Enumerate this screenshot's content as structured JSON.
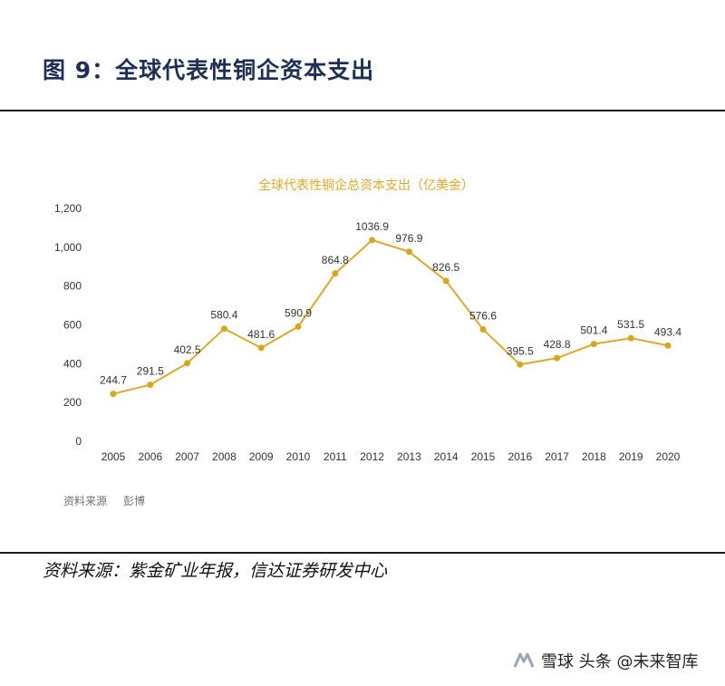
{
  "figure": {
    "title": "图 9：全球代表性铜企资本支出",
    "inner_source_label": "资料来源",
    "inner_source_value": "彭博",
    "source_line": "资料来源：紫金矿业年报，信达证券研发中心",
    "watermark": "雪球 头条 @未来智库"
  },
  "colors": {
    "title_navy": "#1d2f55",
    "line_gold": "#e0a82a",
    "marker_gold": "#d9a520",
    "rule": "#1b1b1b"
  },
  "chart_data": {
    "type": "line",
    "title": "全球代表性铜企总资本支出（亿美金）",
    "categories": [
      "2005",
      "2006",
      "2007",
      "2008",
      "2009",
      "2010",
      "2011",
      "2012",
      "2013",
      "2014",
      "2015",
      "2016",
      "2017",
      "2018",
      "2019",
      "2020"
    ],
    "series": [
      {
        "values": [
          244.7,
          291.5,
          402.5,
          580.4,
          481.6,
          590.9,
          864.8,
          1036.9,
          976.9,
          826.5,
          576.6,
          395.5,
          428.8,
          501.4,
          531.5,
          493.4
        ]
      }
    ],
    "data_labels": [
      "244.7",
      "291.5",
      "402.5",
      "580.4",
      "481.6",
      "590.9",
      "864.8",
      "1036.9",
      "976.9",
      "826.5",
      "576.6",
      "395.5",
      "428.8",
      "501.4",
      "531.5",
      "493.4"
    ],
    "yticks": [
      0,
      200,
      400,
      600,
      800,
      1000,
      1200
    ],
    "ytick_labels": [
      "0",
      "200",
      "400",
      "600",
      "800",
      "1,000",
      "1,200"
    ],
    "ylim": [
      0,
      1200
    ],
    "grid": false,
    "legend": "none"
  }
}
